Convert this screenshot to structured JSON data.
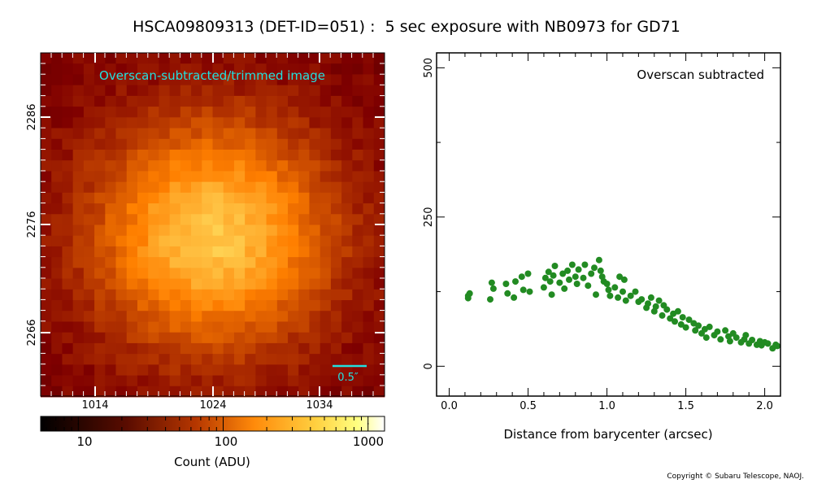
{
  "title": "HSCA09809313 (DET-ID=051) :  5 sec exposure with NB0973 for GD71",
  "copyright": "Copyright © Subaru Telescope, NAOJ.",
  "colors": {
    "annotation": "#22e0e0",
    "scatter": "#228b22"
  },
  "image_panel": {
    "label": "Overscan-subtracted/trimmed image",
    "scale_bar_label": "0.5″",
    "x_ticks": [
      "1014",
      "1024",
      "1034"
    ],
    "y_ticks": [
      "2286",
      "2276",
      "2266"
    ],
    "colorbar": {
      "label": "Count (ADU)",
      "scale": "log",
      "ticks": [
        "10",
        "100",
        "1000"
      ],
      "colormap": "afmhot"
    }
  },
  "chart_data": {
    "type": "scatter",
    "annotation": "Overscan subtracted",
    "xlabel": "Distance from barycenter (arcsec)",
    "ylabel": "",
    "xlim": [
      -0.08,
      2.1
    ],
    "ylim": [
      -50,
      525
    ],
    "x_ticks": [
      "0.0",
      "0.5",
      "1.0",
      "1.5",
      "2.0"
    ],
    "y_ticks": [
      "0",
      "250",
      "500"
    ],
    "grid": false,
    "series": [
      {
        "x": [
          0.12,
          0.13,
          0.12,
          0.27,
          0.28,
          0.26,
          0.36,
          0.37,
          0.41,
          0.42,
          0.46,
          0.47,
          0.5,
          0.51,
          0.6,
          0.61,
          0.63,
          0.64,
          0.65,
          0.66,
          0.67,
          0.7,
          0.72,
          0.73,
          0.75,
          0.76,
          0.78,
          0.8,
          0.81,
          0.82,
          0.85,
          0.86,
          0.88,
          0.9,
          0.92,
          0.93,
          0.95,
          0.96,
          0.97,
          0.98,
          1.0,
          1.01,
          1.02,
          1.05,
          1.07,
          1.08,
          1.1,
          1.11,
          1.12,
          1.15,
          1.18,
          1.2,
          1.22,
          1.25,
          1.26,
          1.28,
          1.3,
          1.31,
          1.33,
          1.35,
          1.36,
          1.38,
          1.4,
          1.42,
          1.43,
          1.45,
          1.47,
          1.48,
          1.5,
          1.52,
          1.55,
          1.56,
          1.58,
          1.6,
          1.62,
          1.63,
          1.65,
          1.68,
          1.7,
          1.72,
          1.75,
          1.77,
          1.78,
          1.8,
          1.82,
          1.85,
          1.87,
          1.88,
          1.9,
          1.92,
          1.95,
          1.97,
          1.98,
          2.0,
          2.02,
          2.05,
          2.07,
          2.08
        ],
        "y": [
          118,
          122,
          114,
          140,
          130,
          112,
          138,
          122,
          115,
          142,
          150,
          128,
          155,
          125,
          132,
          148,
          158,
          142,
          120,
          152,
          168,
          140,
          155,
          130,
          160,
          145,
          170,
          150,
          138,
          162,
          148,
          170,
          135,
          155,
          165,
          120,
          178,
          160,
          150,
          142,
          138,
          128,
          118,
          132,
          115,
          150,
          125,
          145,
          110,
          118,
          125,
          108,
          112,
          98,
          105,
          115,
          92,
          100,
          110,
          85,
          102,
          95,
          80,
          88,
          75,
          92,
          70,
          82,
          65,
          78,
          72,
          60,
          68,
          55,
          62,
          48,
          66,
          52,
          58,
          45,
          60,
          50,
          42,
          55,
          48,
          40,
          45,
          52,
          38,
          44,
          36,
          42,
          35,
          40,
          38,
          30,
          36,
          34
        ]
      }
    ]
  }
}
